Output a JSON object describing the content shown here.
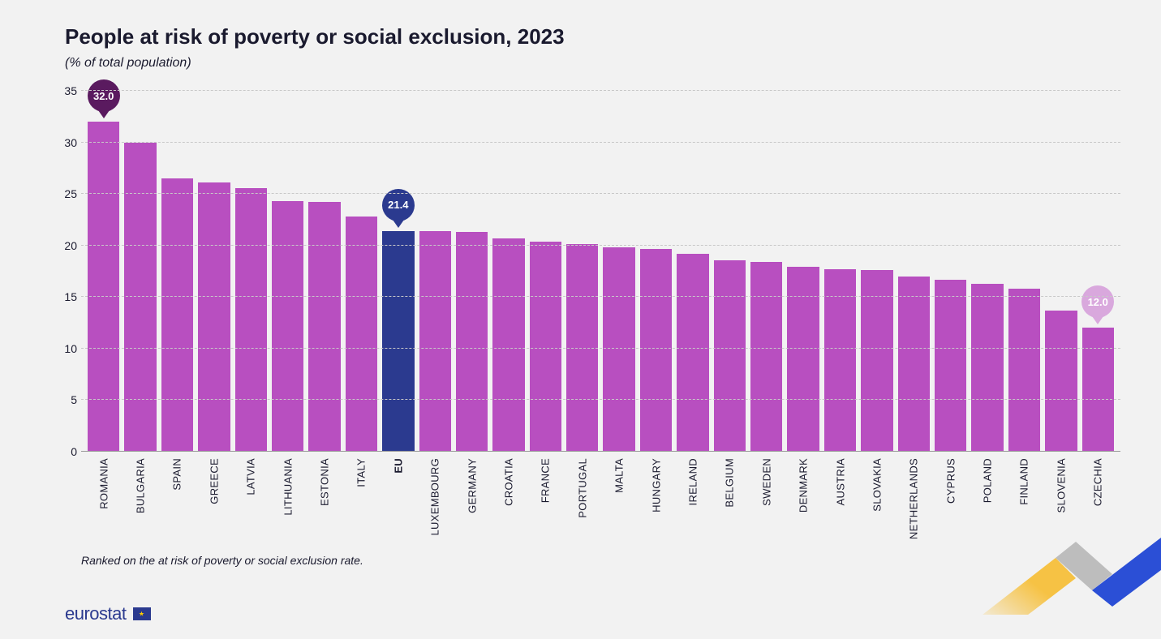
{
  "title": "People at risk of poverty or social exclusion, 2023",
  "subtitle": "(% of total population)",
  "footnote": "Ranked on the at risk of poverty or social exclusion rate.",
  "logo_text": "eurostat",
  "chart": {
    "type": "bar",
    "ylim": [
      0,
      35
    ],
    "ytick_step": 5,
    "yticks": [
      0,
      5,
      10,
      15,
      20,
      25,
      30,
      35
    ],
    "background_color": "#f2f2f2",
    "grid_color": "#c8c8c8",
    "bar_color_default": "#b84fc0",
    "bar_color_highlight": "#2b3a8f",
    "title_color": "#1a1a2e",
    "title_fontsize": 26,
    "subtitle_fontsize": 16,
    "axis_fontsize": 14,
    "xlabel_fontsize": 13,
    "bars": [
      {
        "label": "ROMANIA",
        "value": 32.0,
        "color": "#b84fc0",
        "callout": {
          "text": "32.0",
          "bg": "#5a1a5f"
        }
      },
      {
        "label": "BULGARIA",
        "value": 30.0,
        "color": "#b84fc0"
      },
      {
        "label": "SPAIN",
        "value": 26.5,
        "color": "#b84fc0"
      },
      {
        "label": "GREECE",
        "value": 26.1,
        "color": "#b84fc0"
      },
      {
        "label": "LATVIA",
        "value": 25.6,
        "color": "#b84fc0"
      },
      {
        "label": "LITHUANIA",
        "value": 24.3,
        "color": "#b84fc0"
      },
      {
        "label": "ESTONIA",
        "value": 24.2,
        "color": "#b84fc0"
      },
      {
        "label": "ITALY",
        "value": 22.8,
        "color": "#b84fc0"
      },
      {
        "label": "EU",
        "value": 21.4,
        "color": "#2b3a8f",
        "bold": true,
        "callout": {
          "text": "21.4",
          "bg": "#2b3a8f"
        }
      },
      {
        "label": "LUXEMBOURG",
        "value": 21.4,
        "color": "#b84fc0"
      },
      {
        "label": "GERMANY",
        "value": 21.3,
        "color": "#b84fc0"
      },
      {
        "label": "CROATIA",
        "value": 20.7,
        "color": "#b84fc0"
      },
      {
        "label": "FRANCE",
        "value": 20.4,
        "color": "#b84fc0"
      },
      {
        "label": "PORTUGAL",
        "value": 20.1,
        "color": "#b84fc0"
      },
      {
        "label": "MALTA",
        "value": 19.8,
        "color": "#b84fc0"
      },
      {
        "label": "HUNGARY",
        "value": 19.7,
        "color": "#b84fc0"
      },
      {
        "label": "IRELAND",
        "value": 19.2,
        "color": "#b84fc0"
      },
      {
        "label": "BELGIUM",
        "value": 18.6,
        "color": "#b84fc0"
      },
      {
        "label": "SWEDEN",
        "value": 18.4,
        "color": "#b84fc0"
      },
      {
        "label": "DENMARK",
        "value": 17.9,
        "color": "#b84fc0"
      },
      {
        "label": "AUSTRIA",
        "value": 17.7,
        "color": "#b84fc0"
      },
      {
        "label": "SLOVAKIA",
        "value": 17.6,
        "color": "#b84fc0"
      },
      {
        "label": "NETHERLANDS",
        "value": 17.0,
        "color": "#b84fc0"
      },
      {
        "label": "CYPRUS",
        "value": 16.7,
        "color": "#b84fc0"
      },
      {
        "label": "POLAND",
        "value": 16.3,
        "color": "#b84fc0"
      },
      {
        "label": "FINLAND",
        "value": 15.8,
        "color": "#b84fc0"
      },
      {
        "label": "SLOVENIA",
        "value": 13.7,
        "color": "#b84fc0"
      },
      {
        "label": "CZECHIA",
        "value": 12.0,
        "color": "#b84fc0",
        "callout": {
          "text": "12.0",
          "bg": "#d9a8dd"
        }
      }
    ],
    "decor_colors": {
      "yellow": "#f6c244",
      "grey": "#bdbdbd",
      "blue": "#2b4fd6"
    }
  }
}
